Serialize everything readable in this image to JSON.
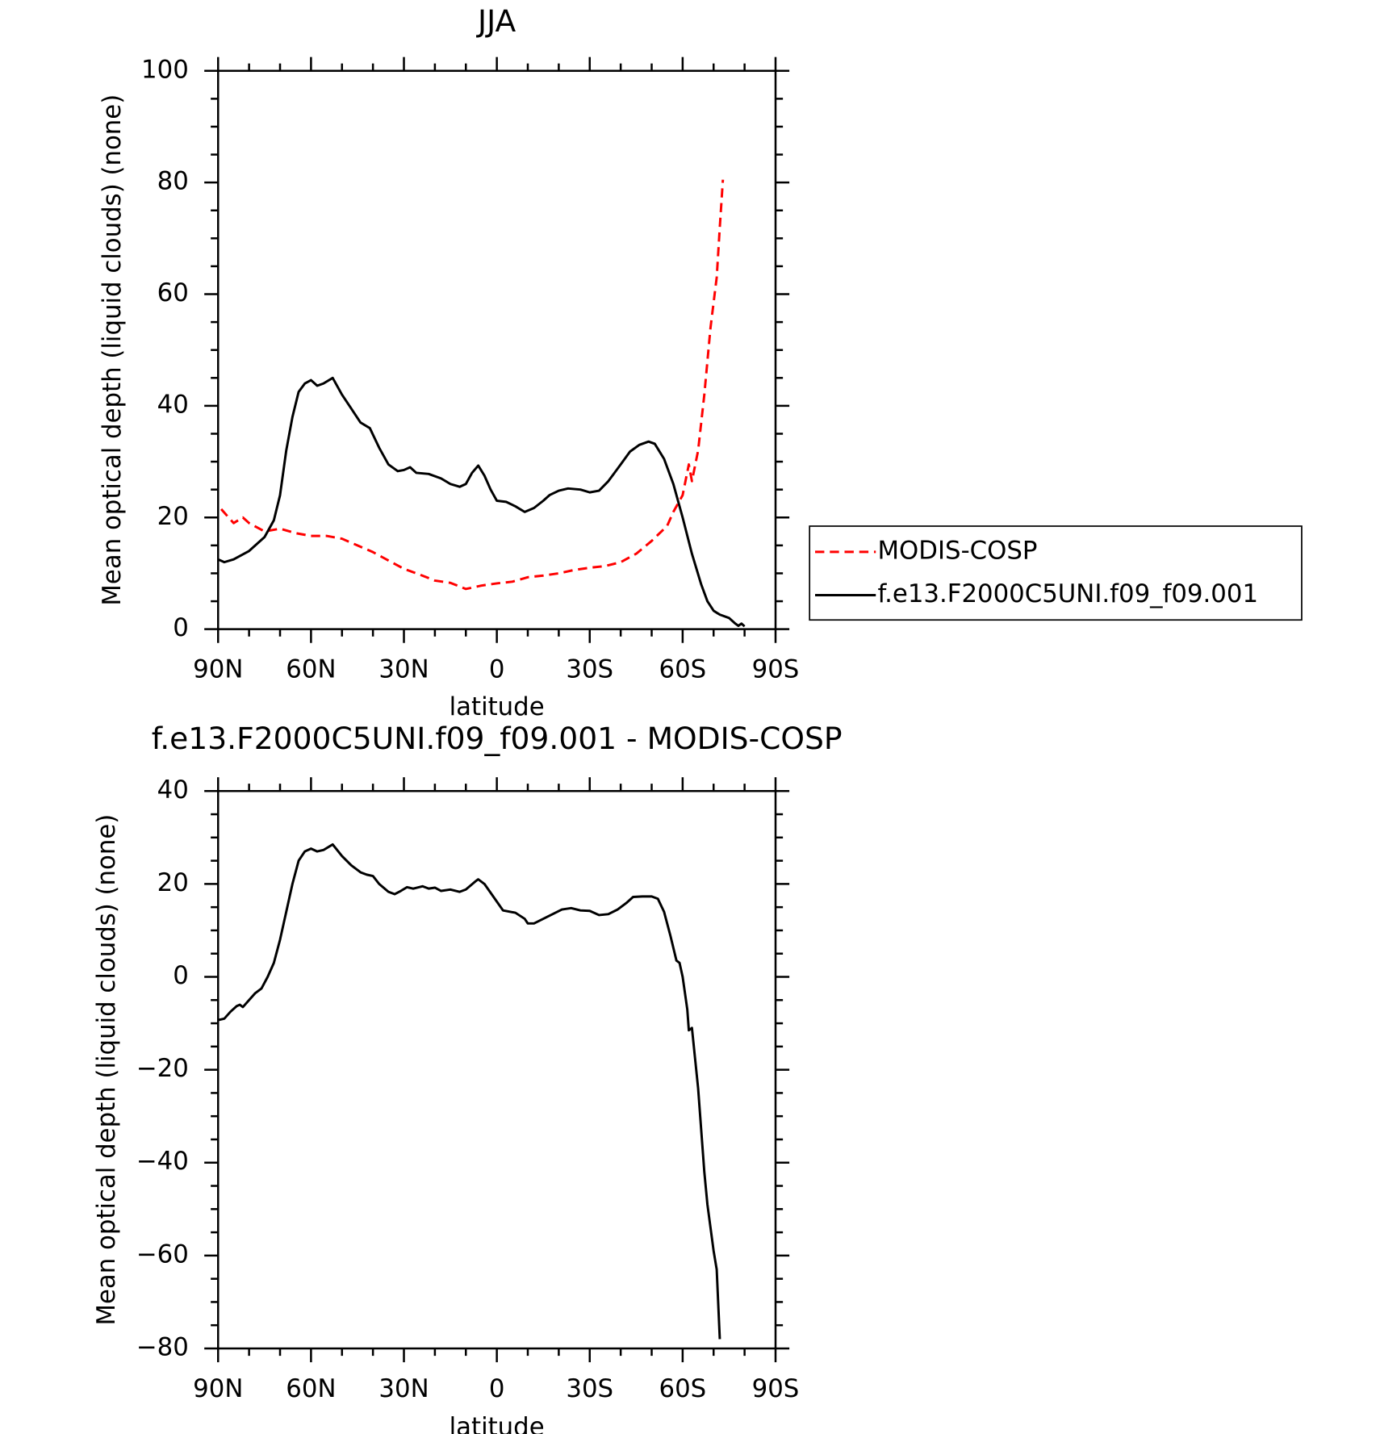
{
  "chart_data": [
    {
      "type": "line",
      "title": "JJA",
      "xlabel": "latitude",
      "ylabel": "Mean optical depth (liquid clouds) (none)",
      "xlim": [
        90,
        -90
      ],
      "xticks": [
        {
          "value": 90,
          "label": "90N"
        },
        {
          "value": 60,
          "label": "60N"
        },
        {
          "value": 30,
          "label": "30N"
        },
        0,
        {
          "value": -30,
          "label": "30S"
        },
        {
          "value": -60,
          "label": "60S"
        },
        {
          "value": -90,
          "label": "90S"
        }
      ],
      "ylim": [
        0,
        100
      ],
      "yticks": [
        0,
        20,
        40,
        60,
        80,
        100
      ],
      "legend": "right",
      "series": [
        {
          "name": "MODIS-COSP",
          "color": "#ff0000",
          "dashed": true,
          "x": [
            89,
            85,
            82,
            80,
            75,
            70,
            65,
            60,
            55,
            50,
            45,
            40,
            35,
            30,
            25,
            20,
            15,
            10,
            5,
            0,
            -5,
            -10,
            -15,
            -20,
            -25,
            -30,
            -35,
            -40,
            -45,
            -50,
            -55,
            -57,
            -60,
            -62,
            -63,
            -65,
            -67,
            -69,
            -71,
            -72,
            -73
          ],
          "values": [
            21.5,
            19,
            20,
            19,
            17.5,
            18,
            17.2,
            16.7,
            16.7,
            16.2,
            15,
            13.8,
            12.3,
            10.8,
            9.8,
            8.7,
            8.3,
            7.2,
            7.8,
            8.2,
            8.5,
            9.3,
            9.6,
            10,
            10.6,
            11,
            11.3,
            12,
            13.5,
            15.8,
            18.5,
            21,
            24,
            29.5,
            26.5,
            32,
            42,
            54,
            63,
            72,
            80.5
          ]
        },
        {
          "name": "f.e13.F2000C5UNI.f09_f09.001",
          "color": "#000000",
          "dashed": false,
          "x": [
            90,
            88,
            85,
            80,
            75,
            72,
            70,
            68,
            66,
            64,
            62,
            60,
            58,
            56,
            53,
            50,
            47,
            44,
            41,
            38,
            35,
            32,
            30,
            28,
            26,
            22,
            18,
            15,
            12,
            10,
            8,
            6,
            4,
            2,
            0,
            -3,
            -6,
            -9,
            -12,
            -15,
            -17,
            -20,
            -23,
            -27,
            -30,
            -33,
            -36,
            -40,
            -43,
            -46,
            -49,
            -51,
            -54,
            -57,
            -60,
            -63,
            -66,
            -68,
            -70,
            -72,
            -75,
            -77,
            -78,
            -79,
            -80
          ],
          "values": [
            12.5,
            12,
            12.5,
            14,
            16.5,
            19.5,
            24,
            32,
            38,
            42.5,
            44,
            44.6,
            43.6,
            44,
            45,
            42,
            39.5,
            37,
            36,
            32.5,
            29.5,
            28.3,
            28.5,
            29,
            28,
            27.8,
            27,
            26,
            25.5,
            26,
            28,
            29.3,
            27.5,
            25,
            23,
            22.8,
            22,
            21,
            21.7,
            23,
            24,
            24.8,
            25.2,
            25,
            24.5,
            24.8,
            26.5,
            29.5,
            31.8,
            33,
            33.6,
            33.2,
            30.5,
            26,
            20,
            13.5,
            8,
            5,
            3.3,
            2.6,
            2,
            1,
            0.6,
            1,
            0.5
          ]
        }
      ]
    },
    {
      "type": "line",
      "title": "f.e13.F2000C5UNI.f09_f09.001 - MODIS-COSP",
      "xlabel": "latitude",
      "ylabel": "Mean optical depth (liquid clouds) (none)",
      "xlim": [
        90,
        -90
      ],
      "xticks": [
        {
          "value": 90,
          "label": "90N"
        },
        {
          "value": 60,
          "label": "60N"
        },
        {
          "value": 30,
          "label": "30N"
        },
        0,
        {
          "value": -30,
          "label": "30S"
        },
        {
          "value": -60,
          "label": "60S"
        },
        {
          "value": -90,
          "label": "90S"
        }
      ],
      "ylim": [
        -80,
        40
      ],
      "yticks": [
        {
          "value": -80,
          "label": "−80"
        },
        {
          "value": -60,
          "label": "−60"
        },
        {
          "value": -40,
          "label": "−40"
        },
        {
          "value": -20,
          "label": "−20"
        },
        0,
        20,
        40
      ],
      "color": "#000000",
      "x": [
        90,
        88,
        86,
        84,
        83,
        82,
        80,
        78,
        76,
        74,
        72,
        70,
        68,
        66,
        64,
        62,
        60,
        58,
        56,
        53,
        50,
        47,
        44,
        42,
        40,
        38,
        35,
        33,
        31,
        29,
        27,
        24,
        22,
        20,
        18,
        15,
        12,
        10,
        7,
        6,
        4,
        0,
        -2,
        -6,
        -9,
        -10,
        -12,
        -15,
        -18,
        -21,
        -24,
        -27,
        -30,
        -33,
        -36,
        -39,
        -42,
        -44,
        -47,
        -50,
        -52,
        -54,
        -56,
        -58,
        -59,
        -60,
        -61.5,
        -62,
        -63,
        -65,
        -66,
        -67,
        -68,
        -69,
        -70,
        -71,
        -72
      ],
      "values": [
        -9.3,
        -9,
        -7.5,
        -6.3,
        -6,
        -6.5,
        -5,
        -3.5,
        -2.5,
        0,
        3,
        8,
        14,
        20,
        25,
        27,
        27.6,
        27,
        27.3,
        28.5,
        26,
        24,
        22.5,
        22,
        21.7,
        20,
        18.3,
        17.8,
        18.5,
        19.3,
        19,
        19.5,
        19,
        19.2,
        18.5,
        18.8,
        18.3,
        18.8,
        20.5,
        21,
        20,
        16.2,
        14.3,
        13.8,
        12.5,
        11.5,
        11.5,
        12.5,
        13.5,
        14.5,
        14.8,
        14.3,
        14.2,
        13.3,
        13.5,
        14.5,
        16,
        17.2,
        17.3,
        17.3,
        16.8,
        14,
        9,
        3.5,
        3,
        0,
        -7,
        -11.5,
        -11,
        -24,
        -33,
        -42,
        -49,
        -54,
        -59,
        -63,
        -78
      ]
    }
  ]
}
